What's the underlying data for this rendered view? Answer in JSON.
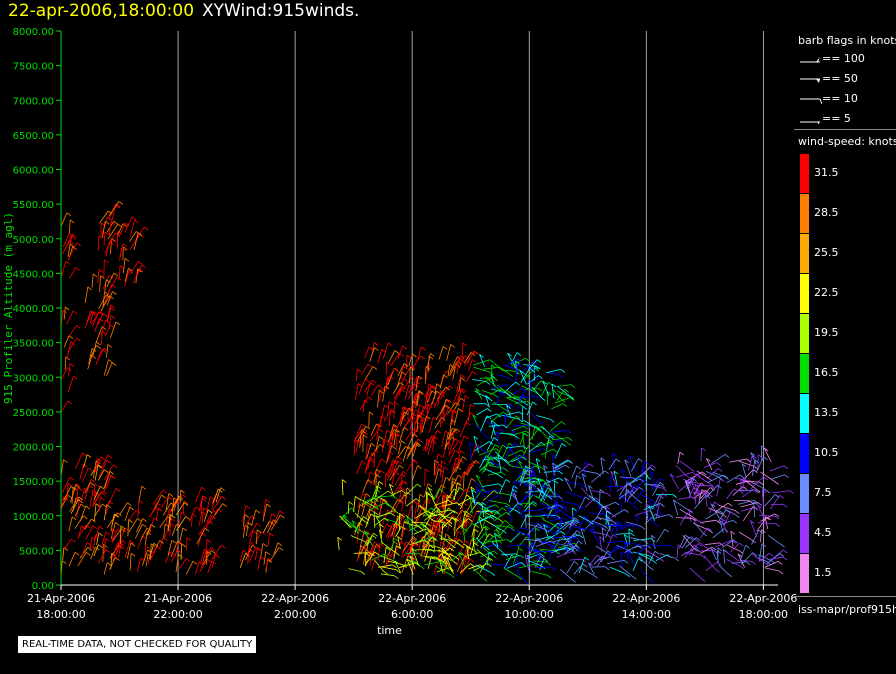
{
  "header": {
    "date_time": "22-apr-2006,18:00:00",
    "product": "XYWind:915winds."
  },
  "legend": {
    "flags_title": "barb flags in knots",
    "flags": [
      "== 100",
      "== 50",
      "== 10",
      "== 5"
    ],
    "speed_title": "wind-speed: knots",
    "speed_bins": [
      {
        "label": "31.5",
        "color": "#ff0000"
      },
      {
        "label": "28.5",
        "color": "#ff7f00"
      },
      {
        "label": "25.5",
        "color": "#ffaa00"
      },
      {
        "label": "22.5",
        "color": "#ffff00"
      },
      {
        "label": "19.5",
        "color": "#aaff00"
      },
      {
        "label": "16.5",
        "color": "#00dd00"
      },
      {
        "label": "13.5",
        "color": "#00ffff"
      },
      {
        "label": "10.5",
        "color": "#0000ff"
      },
      {
        "label": "7.5",
        "color": "#6a8cff"
      },
      {
        "label": "4.5",
        "color": "#9933ff"
      },
      {
        "label": "1.5",
        "color": "#ee88ee"
      }
    ],
    "source": "iss-mapr/prof915h"
  },
  "note": "REAL-TIME DATA, NOT CHECKED FOR QUALITY",
  "chart_data": {
    "type": "scatter",
    "title": "22-apr-2006,18:00:00 XYWind:915winds.",
    "xlabel": "time",
    "ylabel": "915 Profiler Altitude (m agl)",
    "ylim": [
      0,
      8000
    ],
    "y_ticks": [
      "0.00",
      "500.00",
      "1000.00",
      "1500.00",
      "2000.00",
      "2500.00",
      "3000.00",
      "3500.00",
      "4000.00",
      "4500.00",
      "5000.00",
      "5500.00",
      "6000.00",
      "6500.00",
      "7000.00",
      "7500.00",
      "8000.00"
    ],
    "x_ticks": [
      [
        "21-Apr-2006",
        "18:00:00"
      ],
      [
        "21-Apr-2006",
        "22:00:00"
      ],
      [
        "22-Apr-2006",
        "2:00:00"
      ],
      [
        "22-Apr-2006",
        "6:00:00"
      ],
      [
        "22-Apr-2006",
        "10:00:00"
      ],
      [
        "22-Apr-2006",
        "14:00:00"
      ],
      [
        "22-Apr-2006",
        "18:00:00"
      ]
    ],
    "x_tick_hours": [
      0,
      4,
      8,
      12,
      16,
      20,
      24
    ],
    "xlim_hours": [
      0,
      24.5
    ],
    "grid": true,
    "colors": {
      "axis": "#00dd00",
      "grid": "#cccccc"
    },
    "regions": [
      {
        "x": [
          0,
          1.6
        ],
        "y": [
          150,
          1700
        ],
        "speed": 30
      },
      {
        "x": [
          0,
          0.3
        ],
        "y": [
          2500,
          5200
        ],
        "speed": 31
      },
      {
        "x": [
          0.8,
          1.7
        ],
        "y": [
          2900,
          4300
        ],
        "speed": 31
      },
      {
        "x": [
          1.2,
          1.8
        ],
        "y": [
          4300,
          5400
        ],
        "speed": 31
      },
      {
        "x": [
          1.9,
          2.6
        ],
        "y": [
          4300,
          5300
        ],
        "speed": 31
      },
      {
        "x": [
          1.6,
          5.3
        ],
        "y": [
          150,
          1200
        ],
        "speed": 30
      },
      {
        "x": [
          6.0,
          7.3
        ],
        "y": [
          150,
          1000
        ],
        "speed": 30
      },
      {
        "x": [
          10.0,
          14.0
        ],
        "y": [
          150,
          3300
        ],
        "speed": 31
      },
      {
        "x": [
          9.5,
          14.5
        ],
        "y": [
          150,
          1300
        ],
        "speed": 20
      },
      {
        "x": [
          14.0,
          17.0
        ],
        "y": [
          150,
          3200
        ],
        "speed": 14
      },
      {
        "x": [
          15.5,
          20.5
        ],
        "y": [
          150,
          1700
        ],
        "speed": 9
      },
      {
        "x": [
          21.0,
          24.3
        ],
        "y": [
          200,
          1800
        ],
        "speed": 5
      }
    ]
  }
}
